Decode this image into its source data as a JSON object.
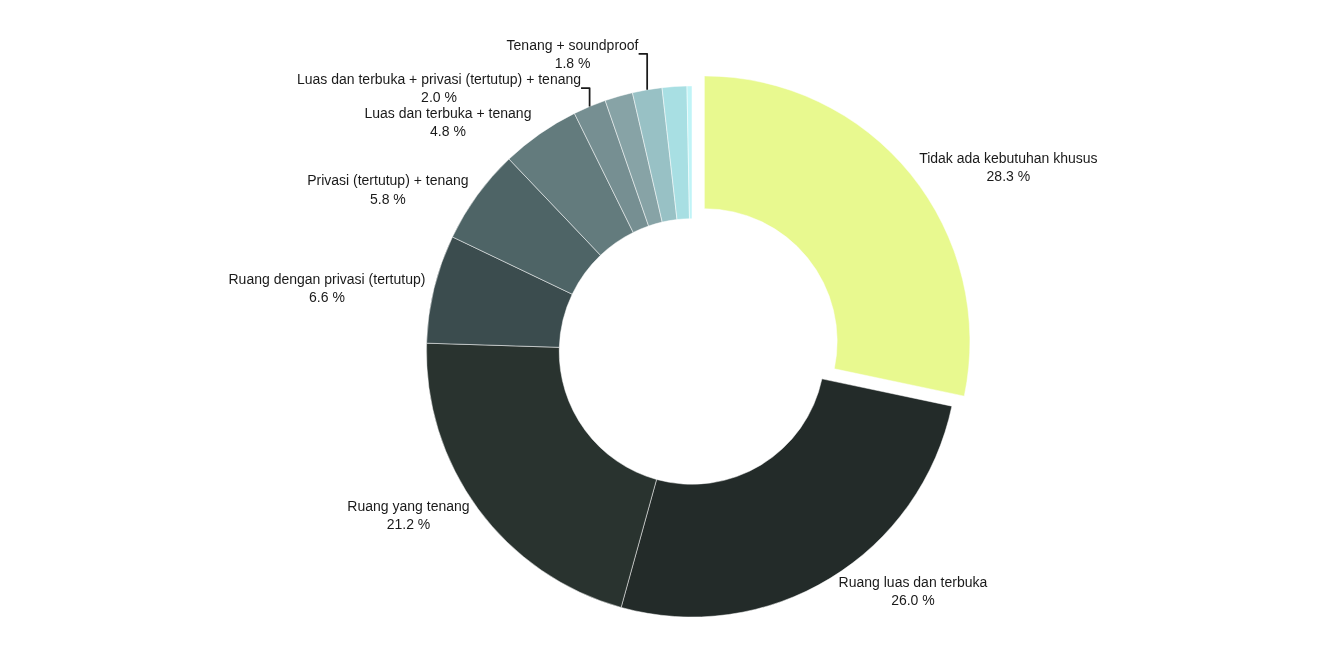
{
  "chart_data": {
    "type": "donut",
    "categories": [
      "Tidak ada kebutuhan khusus",
      "Ruang luas dan terbuka",
      "Ruang yang tenang",
      "Ruang dengan privasi (tertutup)",
      "Privasi (tertutup) + tenang",
      "Luas dan terbuka + tenang",
      "Luas dan terbuka + privasi (tertutup) + tenang",
      null,
      "Tenang + soundproof",
      null,
      null
    ],
    "values": [
      28.3,
      26.0,
      21.2,
      6.6,
      5.8,
      4.8,
      2.0,
      1.7,
      1.8,
      1.5,
      0.3
    ],
    "value_labels": [
      "28.3 %",
      "26.0 %",
      "21.2 %",
      "6.6 %",
      "5.8 %",
      "4.8 %",
      "2.0 %",
      null,
      "1.8 %",
      null,
      null
    ],
    "colors": [
      "#e8f98f",
      "#232b29",
      "#29332f",
      "#3b4c4e",
      "#4e6466",
      "#637b7d",
      "#768f92",
      "#87a3a6",
      "#98c1c5",
      "#a8dfe3",
      "#c0f4f7"
    ],
    "legend": false
  }
}
